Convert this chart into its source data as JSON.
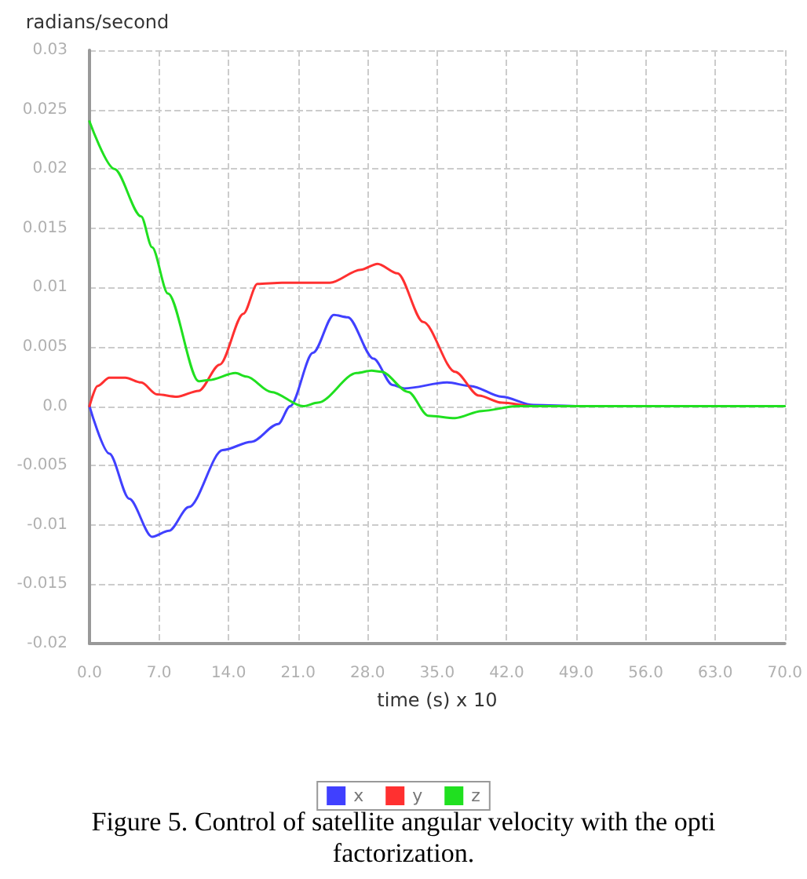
{
  "chart_data": {
    "type": "line",
    "ylabel": "radians/second",
    "xlabel": "time (s) x 10",
    "annotations": [
      "Figure 5. Control of satellite angular velocity with the opti",
      "factorization."
    ],
    "xlim": [
      0,
      70
    ],
    "ylim": [
      -0.02,
      0.03
    ],
    "xticks": [
      {
        "value": 0,
        "label": "0.0"
      },
      {
        "value": 7,
        "label": "7.0"
      },
      {
        "value": 14,
        "label": "14.0"
      },
      {
        "value": 21,
        "label": "21.0"
      },
      {
        "value": 28,
        "label": "28.0"
      },
      {
        "value": 35,
        "label": "35.0"
      },
      {
        "value": 42,
        "label": "42.0"
      },
      {
        "value": 49,
        "label": "49.0"
      },
      {
        "value": 56,
        "label": "56.0"
      },
      {
        "value": 63,
        "label": "63.0"
      },
      {
        "value": 70,
        "label": "70.0"
      }
    ],
    "yticks": [
      -0.02,
      -0.015,
      -0.01,
      -0.005,
      {
        "value": 0,
        "label": "0.0"
      },
      0.005,
      0.01,
      0.015,
      0.02,
      0.025,
      0.03
    ],
    "grid": true,
    "legend": "bottom",
    "marker": "none",
    "line_style": "solid",
    "series": [
      {
        "name": "x",
        "color": "#4040ff",
        "x": [
          0,
          2,
          4,
          6.3,
          8,
          10,
          13.4,
          16.3,
          19,
          20.2,
          22.5,
          24.6,
          26,
          28.6,
          30.5,
          31.7,
          36,
          38.4,
          41.5,
          44.7,
          49.4,
          55
        ],
        "values": [
          0,
          -0.004,
          -0.0078,
          -0.011,
          -0.0105,
          -0.0085,
          -0.0037,
          -0.003,
          -0.0015,
          0,
          0.0045,
          0.0077,
          0.0075,
          0.004,
          0.0018,
          0.0015,
          0.002,
          0.0017,
          0.0008,
          0.0001,
          0,
          0
        ]
      },
      {
        "name": "y",
        "color": "#ff3030",
        "x": [
          0,
          0.8,
          2,
          3.6,
          5.2,
          6.8,
          8.8,
          11,
          13.1,
          15.5,
          16.9,
          19.4,
          24.2,
          27.3,
          29,
          31,
          33.6,
          36.8,
          39.2,
          41.5,
          44.7,
          59.7
        ],
        "values": [
          0,
          0.0017,
          0.0024,
          0.0024,
          0.002,
          0.001,
          0.0008,
          0.0013,
          0.0035,
          0.0078,
          0.0103,
          0.0104,
          0.0104,
          0.0115,
          0.012,
          0.0112,
          0.0071,
          0.0029,
          0.0009,
          0.0003,
          0,
          0
        ]
      },
      {
        "name": "z",
        "color": "#20e020",
        "x": [
          0,
          2.5,
          5.2,
          6.3,
          7.9,
          11,
          12,
          14.7,
          15.8,
          18.3,
          21.5,
          23,
          26.9,
          28.4,
          29.4,
          32.1,
          34.1,
          36.8,
          39.5,
          43,
          50,
          70
        ],
        "values": [
          0.024,
          0.02,
          0.016,
          0.0134,
          0.0095,
          0.0021,
          0.0022,
          0.0028,
          0.0025,
          0.0012,
          0,
          0.0003,
          0.0028,
          0.003,
          0.0029,
          0.0012,
          -0.0008,
          -0.001,
          -0.0004,
          0,
          0,
          0
        ]
      }
    ]
  }
}
